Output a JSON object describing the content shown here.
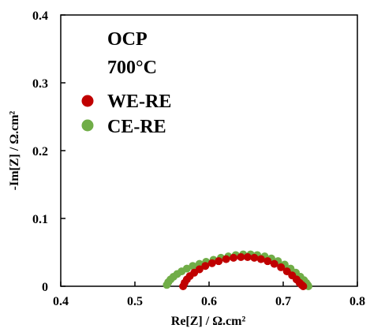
{
  "chart_data": {
    "type": "scatter",
    "title": "",
    "xlabel": "Re[Z] / Ω.cm²",
    "ylabel": "-Im[Z] / Ω.cm²",
    "xlim": [
      0.4,
      0.8
    ],
    "ylim": [
      0,
      0.4
    ],
    "xticks": [
      "0.4",
      "0.5",
      "0.6",
      "0.7",
      "0.8"
    ],
    "yticks": [
      "0",
      "0.1",
      "0.2",
      "0.3",
      "0.4"
    ],
    "grid": false,
    "annotations": [
      "OCP",
      "700°C"
    ],
    "legend_position": "top-left",
    "series": [
      {
        "name": "WE-RE",
        "color": "#c00000",
        "x": [
          0.565,
          0.567,
          0.57,
          0.574,
          0.58,
          0.587,
          0.595,
          0.604,
          0.613,
          0.623,
          0.633,
          0.643,
          0.652,
          0.661,
          0.67,
          0.679,
          0.688,
          0.697,
          0.705,
          0.712,
          0.718,
          0.722,
          0.725,
          0.727
        ],
        "y": [
          0.0,
          0.005,
          0.01,
          0.015,
          0.02,
          0.025,
          0.03,
          0.034,
          0.037,
          0.04,
          0.042,
          0.043,
          0.043,
          0.042,
          0.04,
          0.037,
          0.033,
          0.028,
          0.022,
          0.016,
          0.01,
          0.005,
          0.002,
          0.0
        ]
      },
      {
        "name": "CE-RE",
        "color": "#70ad47",
        "x": [
          0.543,
          0.545,
          0.548,
          0.552,
          0.557,
          0.563,
          0.57,
          0.578,
          0.587,
          0.596,
          0.606,
          0.616,
          0.626,
          0.636,
          0.646,
          0.656,
          0.665,
          0.675,
          0.684,
          0.693,
          0.702,
          0.71,
          0.717,
          0.723,
          0.728,
          0.731,
          0.733,
          0.734
        ],
        "y": [
          0.002,
          0.006,
          0.01,
          0.014,
          0.018,
          0.022,
          0.026,
          0.03,
          0.033,
          0.036,
          0.039,
          0.042,
          0.044,
          0.046,
          0.047,
          0.047,
          0.046,
          0.044,
          0.041,
          0.037,
          0.032,
          0.026,
          0.02,
          0.014,
          0.009,
          0.005,
          0.002,
          0.0
        ]
      }
    ]
  }
}
